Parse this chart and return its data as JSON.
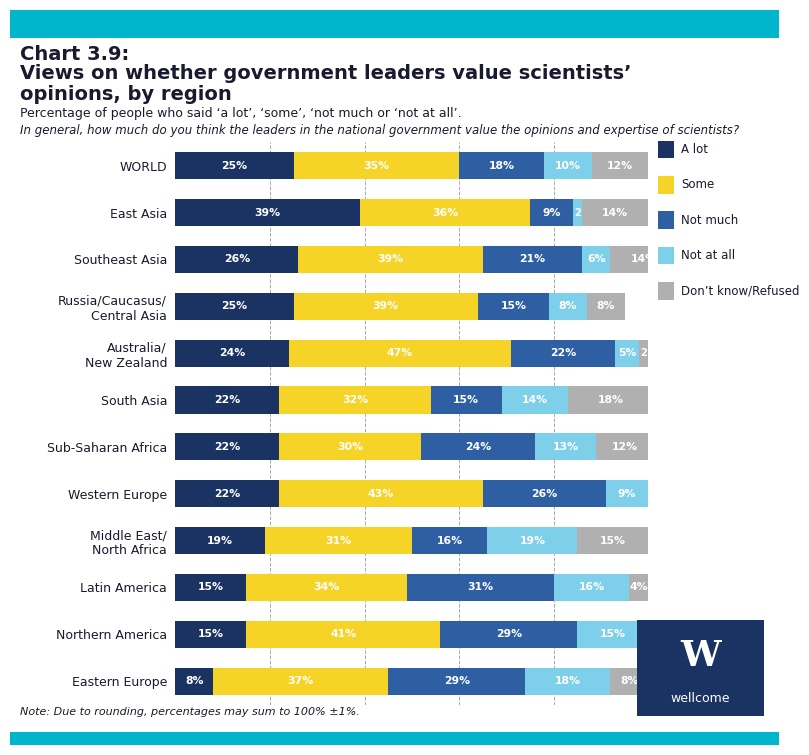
{
  "title_line1": "Chart 3.9:",
  "title_line2": "Views on whether government leaders value scientists’",
  "title_line3": "opinions, by region",
  "subtitle": "Percentage of people who said ‘a lot’, ‘some’, ‘not much or ‘not at all’.",
  "question": "In general, how much do you think the leaders in the national government value the opinions and expertise of scientists?",
  "note": "Note: Due to rounding, percentages may sum to 100% ±1%.",
  "regions": [
    "WORLD",
    "East Asia",
    "Southeast Asia",
    "Russia/Caucasus/\nCentral Asia",
    "Australia/\nNew Zealand",
    "South Asia",
    "Sub-Saharan Africa",
    "Western Europe",
    "Middle East/\nNorth Africa",
    "Latin America",
    "Northern America",
    "Eastern Europe"
  ],
  "data": {
    "a_lot": [
      25,
      39,
      26,
      25,
      24,
      22,
      22,
      22,
      19,
      15,
      15,
      8
    ],
    "some": [
      35,
      36,
      39,
      39,
      47,
      32,
      30,
      43,
      31,
      34,
      41,
      37
    ],
    "not_much": [
      18,
      9,
      21,
      15,
      22,
      15,
      24,
      26,
      16,
      31,
      29,
      29
    ],
    "not_at_all": [
      10,
      2,
      6,
      8,
      5,
      14,
      13,
      9,
      19,
      16,
      15,
      18
    ],
    "dont_know": [
      12,
      14,
      14,
      8,
      2,
      18,
      12,
      0,
      15,
      4,
      0,
      8
    ]
  },
  "colors": {
    "a_lot": "#1a3363",
    "some": "#f5d327",
    "not_much": "#2e5fa3",
    "not_at_all": "#7ecfea",
    "dont_know": "#b0b0b0"
  },
  "legend_labels": [
    "A lot",
    "Some",
    "Not much",
    "Not at all",
    "Don’t know/Refused"
  ],
  "background_color": "#ffffff",
  "bar_height": 0.58,
  "top_bar_color": "#00b5cc",
  "bottom_bar_color": "#00b5cc",
  "logo_bg": "#1a3363",
  "title_color": "#1a1a2e",
  "text_color": "#333333"
}
